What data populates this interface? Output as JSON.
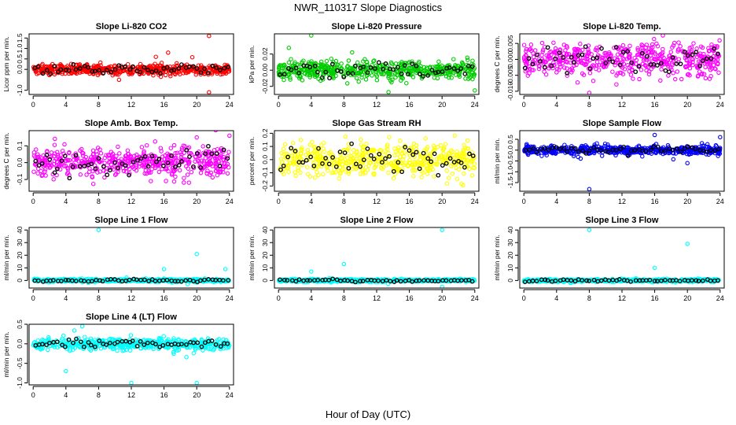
{
  "figure": {
    "title": "NWR_110317  Slope Diagnostics",
    "xlabel": "Hour of Day (UTC)"
  },
  "colors": {
    "red": "#ff0000",
    "green": "#00cc00",
    "magenta": "#ff00ff",
    "yellow": "#ffff00",
    "blue": "#0000ff",
    "cyan": "#00ffff",
    "black": "#000000"
  },
  "chart_data": [
    {
      "type": "scatter",
      "title": "Slope Li-820 CO2",
      "ylabel": "Licor ppm per min.",
      "color": "red",
      "xlim": [
        -0.5,
        24.5
      ],
      "ylim": [
        -1.2,
        1.7
      ],
      "xticks": [
        0,
        4,
        8,
        12,
        16,
        20,
        24
      ],
      "yticks": [
        -1.0,
        0.0,
        0.5,
        1.0,
        1.5
      ],
      "ytick_labels": [
        "-1.0",
        "0.0",
        "0.5",
        "1.0",
        "1.5"
      ],
      "spread": 0.18,
      "outliers": [
        [
          21.5,
          1.6
        ],
        [
          21.5,
          -1.1
        ],
        [
          16.5,
          0.8
        ],
        [
          10.5,
          -0.5
        ],
        [
          15,
          0.6
        ]
      ]
    },
    {
      "type": "scatter",
      "title": "Slope Li-820 Pressure",
      "ylabel": "kPa per min.",
      "color": "green",
      "xlim": [
        -0.5,
        24.5
      ],
      "ylim": [
        -0.03,
        0.045
      ],
      "xticks": [
        0,
        4,
        8,
        12,
        16,
        20,
        24
      ],
      "yticks": [
        -0.02,
        0.0,
        0.02
      ],
      "ytick_labels": [
        "-0.02",
        "0.00",
        "0.02"
      ],
      "spread": 0.008,
      "outliers": [
        [
          4,
          0.043
        ],
        [
          24,
          -0.025
        ],
        [
          9,
          0.022
        ]
      ]
    },
    {
      "type": "scatter",
      "title": "Slope Li-820 Temp.",
      "ylabel": "degrees C per min.",
      "color": "magenta",
      "xlim": [
        -0.5,
        24.5
      ],
      "ylim": [
        -0.011,
        0.008
      ],
      "xticks": [
        0,
        4,
        8,
        12,
        16,
        20,
        24
      ],
      "yticks": [
        -0.01,
        -0.005,
        0.0,
        0.005
      ],
      "ytick_labels": [
        "-0.010",
        "-0.005",
        "0.000",
        "0.005"
      ],
      "spread": 0.0035,
      "outliers": [
        [
          17,
          0.0075
        ],
        [
          8,
          -0.0105
        ]
      ]
    },
    {
      "type": "scatter",
      "title": "Slope Amb. Box Temp.",
      "ylabel": "degrees C per min.",
      "color": "magenta",
      "xlim": [
        -0.5,
        24.5
      ],
      "ylim": [
        -0.17,
        0.19
      ],
      "xticks": [
        0,
        4,
        8,
        12,
        16,
        20,
        24
      ],
      "yticks": [
        -0.1,
        0.0,
        0.1
      ],
      "ytick_labels": [
        "-0.1",
        "0.0",
        "0.1"
      ],
      "spread": 0.06,
      "outliers": [
        [
          24,
          0.16
        ],
        [
          20,
          0.15
        ]
      ]
    },
    {
      "type": "scatter",
      "title": "Slope Gas Stream RH",
      "ylabel": "percent per min.",
      "color": "yellow",
      "xlim": [
        -0.5,
        24.5
      ],
      "ylim": [
        -0.24,
        0.22
      ],
      "xticks": [
        0,
        4,
        8,
        12,
        16,
        20,
        24
      ],
      "yticks": [
        -0.2,
        -0.1,
        0.0,
        0.1,
        0.2
      ],
      "ytick_labels": [
        "-0.2",
        "-0.1",
        "0.0",
        "0.1",
        "0.2"
      ],
      "spread": 0.08,
      "outliers": []
    },
    {
      "type": "scatter",
      "title": "Slope Sample Flow",
      "ylabel": "ml/min per min.",
      "color": "blue",
      "xlim": [
        -0.5,
        24.5
      ],
      "ylim": [
        -1.9,
        0.9
      ],
      "xticks": [
        0,
        4,
        8,
        12,
        16,
        20,
        24
      ],
      "yticks": [
        -1.5,
        -1.0,
        -0.5,
        0.0,
        0.5
      ],
      "ytick_labels": [
        "-1.5",
        "-1.0",
        "-0.5",
        "0.0",
        "0.5"
      ],
      "spread": 0.15,
      "outliers": [
        [
          8,
          -1.8
        ],
        [
          24,
          0.6
        ],
        [
          20,
          -0.6
        ],
        [
          16,
          0.7
        ]
      ]
    },
    {
      "type": "scatter",
      "title": "Slope Line 1 Flow",
      "ylabel": "ml/min per min.",
      "color": "cyan",
      "xlim": [
        -0.5,
        24.5
      ],
      "ylim": [
        -6,
        42
      ],
      "xticks": [
        0,
        4,
        8,
        12,
        16,
        20,
        24
      ],
      "yticks": [
        0,
        10,
        20,
        30,
        40
      ],
      "ytick_labels": [
        "0",
        "10",
        "20",
        "30",
        "40"
      ],
      "spread": 0.8,
      "outliers": [
        [
          8,
          40
        ],
        [
          20,
          21
        ],
        [
          16,
          9
        ],
        [
          23.5,
          9
        ]
      ]
    },
    {
      "type": "scatter",
      "title": "Slope Line 2 Flow",
      "ylabel": "ml/min per min.",
      "color": "cyan",
      "xlim": [
        -0.5,
        24.5
      ],
      "ylim": [
        -6,
        42
      ],
      "xticks": [
        0,
        4,
        8,
        12,
        16,
        20,
        24
      ],
      "yticks": [
        0,
        10,
        20,
        30,
        40
      ],
      "ytick_labels": [
        "0",
        "10",
        "20",
        "30",
        "40"
      ],
      "spread": 0.8,
      "outliers": [
        [
          20,
          40
        ],
        [
          8,
          13
        ],
        [
          4,
          7
        ],
        [
          20,
          -5
        ]
      ]
    },
    {
      "type": "scatter",
      "title": "Slope Line 3 Flow",
      "ylabel": "ml/min per min.",
      "color": "cyan",
      "xlim": [
        -0.5,
        24.5
      ],
      "ylim": [
        -6,
        42
      ],
      "xticks": [
        0,
        4,
        8,
        12,
        16,
        20,
        24
      ],
      "yticks": [
        0,
        10,
        20,
        30,
        40
      ],
      "ytick_labels": [
        "0",
        "10",
        "20",
        "30",
        "40"
      ],
      "spread": 0.8,
      "outliers": [
        [
          8,
          40
        ],
        [
          20,
          29
        ],
        [
          16,
          10
        ]
      ]
    },
    {
      "type": "scatter",
      "title": "Slope Line 4 (LT) Flow",
      "ylabel": "ml/min per min.",
      "color": "cyan",
      "xlim": [
        -0.5,
        24.5
      ],
      "ylim": [
        -1.05,
        0.5
      ],
      "xticks": [
        0,
        4,
        8,
        12,
        16,
        20,
        24
      ],
      "yticks": [
        -1.0,
        -0.5,
        0.0,
        0.5
      ],
      "ytick_labels": [
        "-1.0",
        "-0.5",
        "0.0",
        "0.5"
      ],
      "spread": 0.1,
      "outliers": [
        [
          12,
          -1.0
        ],
        [
          20,
          -1.0
        ],
        [
          4,
          -0.7
        ],
        [
          6,
          0.45
        ]
      ]
    }
  ]
}
